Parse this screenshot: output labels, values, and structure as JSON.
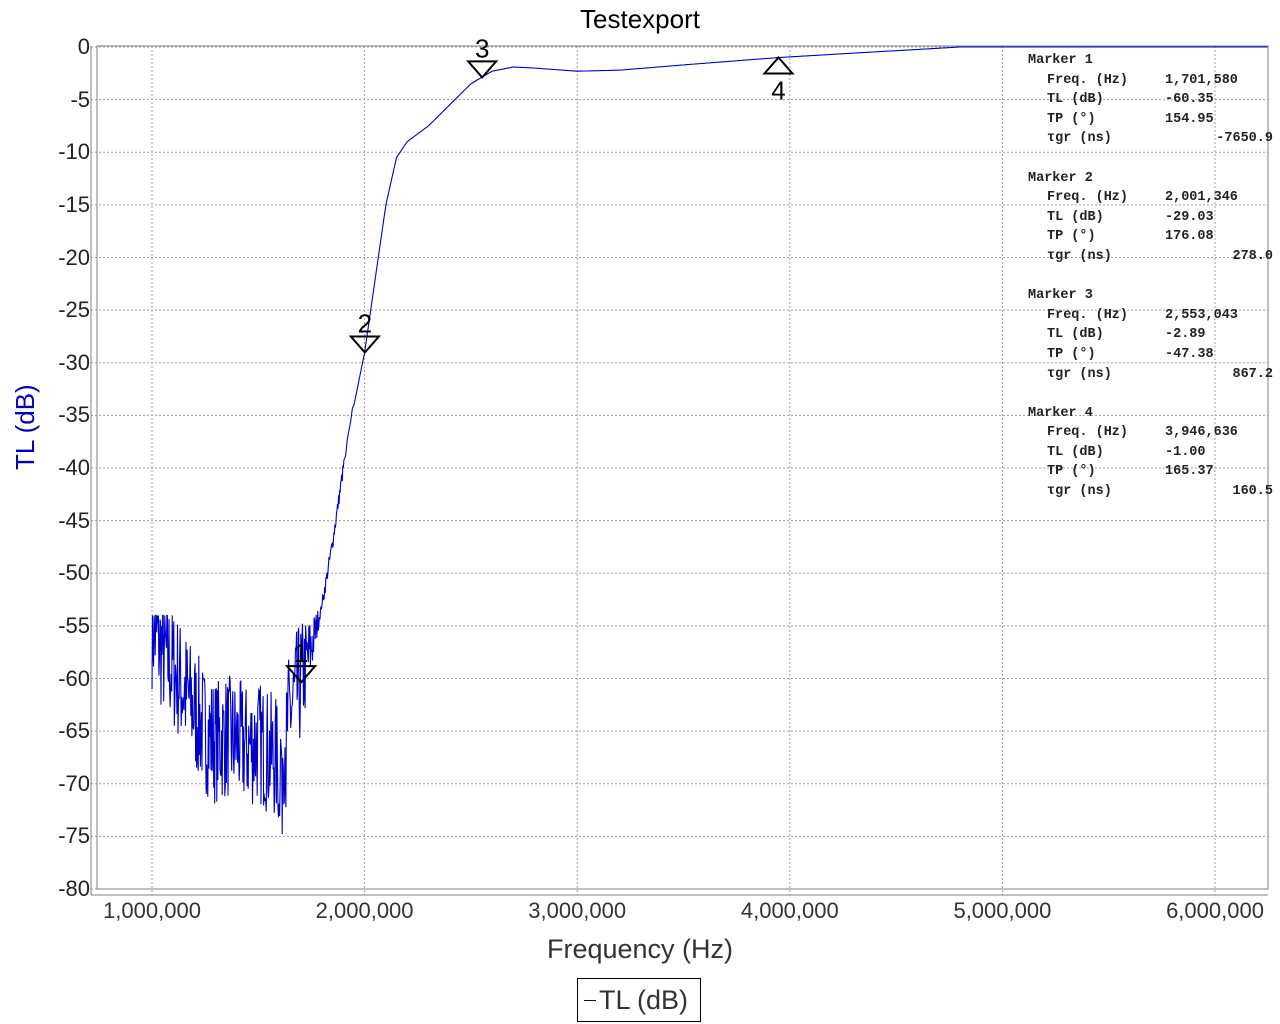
{
  "chart_data": {
    "type": "line",
    "title": "Testexport",
    "xlabel": "Frequency (Hz)",
    "ylabel": "TL (dB)",
    "xlim": [
      750000,
      6250000
    ],
    "ylim": [
      -80,
      0
    ],
    "x_ticks": [
      1000000,
      2000000,
      3000000,
      4000000,
      5000000,
      6000000
    ],
    "x_tick_labels": [
      "1,000,000",
      "2,000,000",
      "3,000,000",
      "4,000,000",
      "5,000,000",
      "6,000,000"
    ],
    "y_ticks": [
      0,
      -5,
      -10,
      -15,
      -20,
      -25,
      -30,
      -35,
      -40,
      -45,
      -50,
      -55,
      -60,
      -65,
      -70,
      -75,
      -80
    ],
    "y_tick_labels": [
      "0",
      "-5",
      "-10",
      "-15",
      "-20",
      "-25",
      "-30",
      "-35",
      "-40",
      "-45",
      "-50",
      "-55",
      "-60",
      "-65",
      "-70",
      "-75",
      "-80"
    ],
    "grid": true,
    "legend_position": "bottom-center",
    "series": [
      {
        "name": "TL (dB)",
        "color": "#0000cd",
        "x": [
          1000000,
          1050000,
          1100000,
          1150000,
          1200000,
          1250000,
          1300000,
          1350000,
          1400000,
          1450000,
          1500000,
          1550000,
          1600000,
          1650000,
          1700000,
          1750000,
          1800000,
          1850000,
          1900000,
          1950000,
          2000000,
          2050000,
          2100000,
          2150000,
          2200000,
          2300000,
          2400000,
          2500000,
          2550000,
          2600000,
          2700000,
          2800000,
          3000000,
          3200000,
          3500000,
          3946636,
          4200000,
          4500000,
          4800000,
          5500000,
          6250000
        ],
        "values": [
          -55,
          -57.5,
          -59,
          -61,
          -63,
          -65,
          -66,
          -65.5,
          -66,
          -66.5,
          -66,
          -67,
          -68,
          -63,
          -60.35,
          -57,
          -53,
          -47,
          -40,
          -34,
          -29.03,
          -22,
          -15,
          -10.5,
          -9,
          -7.5,
          -5.5,
          -3.5,
          -2.89,
          -2.3,
          -1.9,
          -2.0,
          -2.3,
          -2.2,
          -1.7,
          -1.0,
          -0.7,
          -0.35,
          0,
          0,
          0
        ],
        "noise_region": {
          "x_from": 1000000,
          "x_to": 1800000,
          "min_dip": -75,
          "amplitude_db": 6
        }
      }
    ],
    "markers": [
      {
        "id": "1",
        "freq_hz": 1701580,
        "tl_db": -60.35,
        "direction": "down",
        "label_position": "above"
      },
      {
        "id": "2",
        "freq_hz": 2001346,
        "tl_db": -29.03,
        "direction": "down",
        "label_position": "above"
      },
      {
        "id": "3",
        "freq_hz": 2553043,
        "tl_db": -2.89,
        "direction": "down",
        "label_position": "above"
      },
      {
        "id": "4",
        "freq_hz": 3946636,
        "tl_db": -1.0,
        "direction": "up",
        "label_position": "below"
      }
    ]
  },
  "legend": {
    "label": "TL (dB)"
  },
  "marker_panel": [
    {
      "title": "Marker 1",
      "rows": [
        {
          "label": "Freq. (Hz)",
          "value": "1,701,580",
          "align": "left"
        },
        {
          "label": "TL (dB)",
          "value": "-60.35",
          "align": "left"
        },
        {
          "label": "TP (°)",
          "value": "154.95",
          "align": "left"
        },
        {
          "label": "τgr (ns)",
          "value": "-7650.9",
          "align": "right"
        }
      ]
    },
    {
      "title": "Marker 2",
      "rows": [
        {
          "label": "Freq. (Hz)",
          "value": "2,001,346",
          "align": "left"
        },
        {
          "label": "TL (dB)",
          "value": "-29.03",
          "align": "left"
        },
        {
          "label": "TP (°)",
          "value": "176.08",
          "align": "left"
        },
        {
          "label": "τgr (ns)",
          "value": "278.0",
          "align": "right"
        }
      ]
    },
    {
      "title": "Marker 3",
      "rows": [
        {
          "label": "Freq. (Hz)",
          "value": "2,553,043",
          "align": "left"
        },
        {
          "label": "TL (dB)",
          "value": "-2.89",
          "align": "left"
        },
        {
          "label": "TP (°)",
          "value": "-47.38",
          "align": "left"
        },
        {
          "label": "τgr (ns)",
          "value": "867.2",
          "align": "right"
        }
      ]
    },
    {
      "title": "Marker 4",
      "rows": [
        {
          "label": "Freq. (Hz)",
          "value": "3,946,636",
          "align": "left"
        },
        {
          "label": "TL (dB)",
          "value": "-1.00",
          "align": "left"
        },
        {
          "label": "TP (°)",
          "value": "165.37",
          "align": "left"
        },
        {
          "label": "τgr (ns)",
          "value": "160.5",
          "align": "right"
        }
      ]
    }
  ]
}
